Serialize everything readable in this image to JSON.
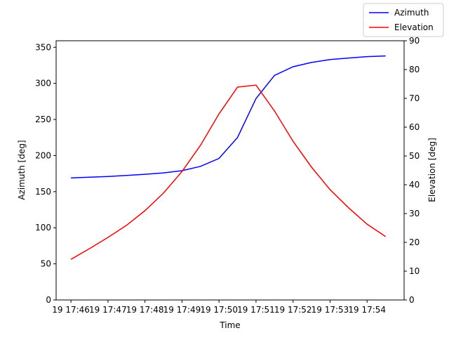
{
  "chart_data": {
    "type": "line",
    "xlabel": "Time",
    "ylabel": "Azimuth [deg]",
    "y2label": "Elevation [deg]",
    "x": [
      46,
      46.5,
      47,
      47.5,
      48,
      48.5,
      49,
      49.5,
      50,
      50.5,
      51,
      51.5,
      52,
      52.5,
      53,
      53.5,
      54,
      54.5
    ],
    "xlim": [
      45.6,
      55.0
    ],
    "xticks": [
      {
        "value": 46,
        "label": "19 17:46"
      },
      {
        "value": 47,
        "label": "19 17:47"
      },
      {
        "value": 48,
        "label": "19 17:48"
      },
      {
        "value": 49,
        "label": "19 17:49"
      },
      {
        "value": 50,
        "label": "19 17:50"
      },
      {
        "value": 51,
        "label": "19 17:51"
      },
      {
        "value": 52,
        "label": "19 17:52"
      },
      {
        "value": 53,
        "label": "19 17:53"
      },
      {
        "value": 54,
        "label": "19 17:54"
      }
    ],
    "ylim": [
      0,
      359
    ],
    "yticks": [
      0,
      50,
      100,
      150,
      200,
      250,
      300,
      350
    ],
    "y2lim": [
      0,
      90
    ],
    "y2ticks": [
      0,
      10,
      20,
      30,
      40,
      50,
      60,
      70,
      80,
      90
    ],
    "legend": "upper right",
    "series": [
      {
        "name": "Azimuth",
        "color": "#0000ff",
        "values": [
          169,
          170,
          171,
          172.5,
          174,
          176,
          179,
          185,
          196,
          225,
          279,
          311,
          323,
          329,
          333,
          335,
          337,
          338
        ]
      },
      {
        "name": "Elevation",
        "color": "#ff0000",
        "axis": "y2",
        "values": [
          14.1,
          17.8,
          21.7,
          25.9,
          31.0,
          37.1,
          44.6,
          53.7,
          64.6,
          73.9,
          74.6,
          65.6,
          55.1,
          46.1,
          38.3,
          32.0,
          26.3,
          22.0
        ]
      }
    ]
  }
}
